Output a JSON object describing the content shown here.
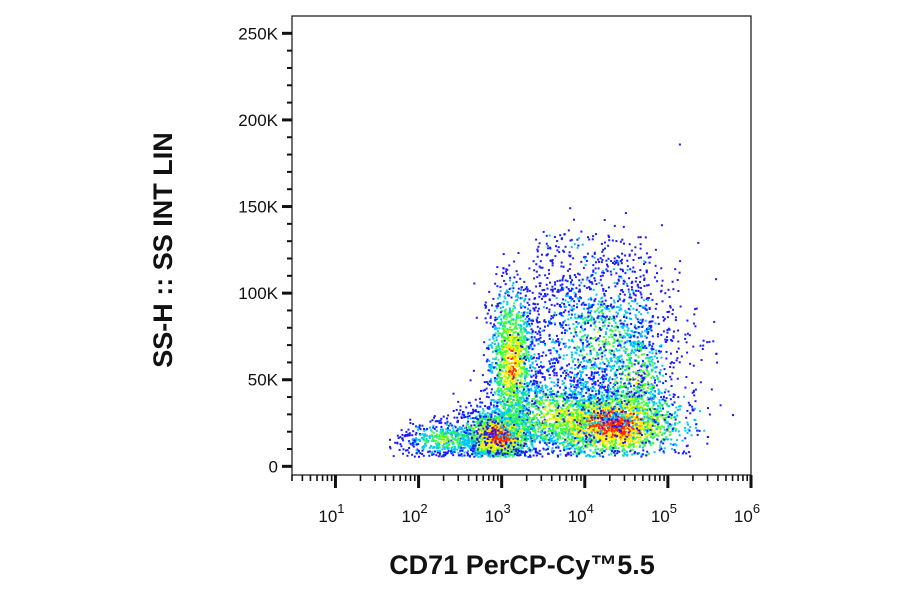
{
  "chart_data": {
    "type": "scatter",
    "subtype": "flow-cytometry-density-pseudocolor",
    "xlabel": "CD71 PerCP-Cy™5.5",
    "ylabel": "SS-H :: SS INT LIN",
    "x_scale": "log",
    "y_scale": "linear",
    "xlim": [
      3,
      1000000
    ],
    "ylim": [
      -5000,
      260000
    ],
    "x_ticks": [
      {
        "value": 10,
        "base": "10",
        "exp": "1"
      },
      {
        "value": 100,
        "base": "10",
        "exp": "2"
      },
      {
        "value": 1000,
        "base": "10",
        "exp": "3"
      },
      {
        "value": 10000,
        "base": "10",
        "exp": "4"
      },
      {
        "value": 100000,
        "base": "10",
        "exp": "5"
      },
      {
        "value": 1000000,
        "base": "10",
        "exp": "6"
      }
    ],
    "y_ticks": [
      {
        "value": 0,
        "label": "0"
      },
      {
        "value": 50000,
        "label": "50K"
      },
      {
        "value": 100000,
        "label": "100K"
      },
      {
        "value": 150000,
        "label": "150K"
      },
      {
        "value": 200000,
        "label": "200K"
      },
      {
        "value": 250000,
        "label": "250K"
      }
    ],
    "density_colors": [
      "#1a1aff",
      "#00c8ff",
      "#3cff3c",
      "#ffee00",
      "#ff2a00"
    ],
    "populations": [
      {
        "x_center": 900,
        "y_center": 18000,
        "density": "high"
      },
      {
        "x_center": 1300,
        "y_center": 62000,
        "density": "medium"
      },
      {
        "x_center": 20000,
        "y_center": 25000,
        "density": "high"
      },
      {
        "x_center": 15000,
        "y_center": 80000,
        "density": "low"
      }
    ],
    "grid": false,
    "legend": "none"
  }
}
